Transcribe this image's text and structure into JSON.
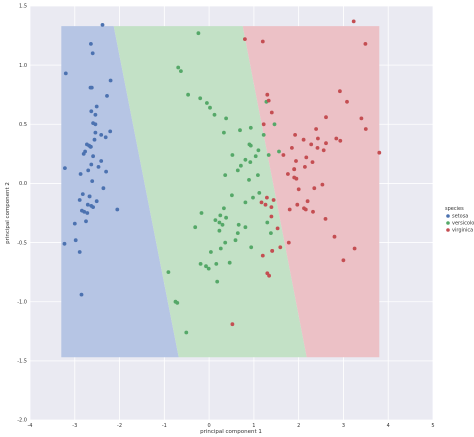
{
  "chart_data": {
    "type": "scatter",
    "title": "",
    "xlabel": "principal component 1",
    "ylabel": "principal component 2",
    "xlim": [
      -4,
      5
    ],
    "ylim": [
      -2.0,
      1.5
    ],
    "xticks": [
      -4,
      -3,
      -2,
      -1,
      0,
      1,
      2,
      3,
      4,
      5
    ],
    "yticks": [
      -2.0,
      -1.5,
      -1.0,
      -0.5,
      0.0,
      0.5,
      1.0,
      1.5
    ],
    "grid": true,
    "legend": {
      "title": "species",
      "placement": "right"
    },
    "decision_regions": {
      "extent": {
        "x": [
          -3.3,
          3.8
        ],
        "y": [
          -1.47,
          1.33
        ]
      },
      "regions": [
        {
          "class": "setosa",
          "color": "#b6c5e4",
          "polygon": [
            [
              -3.3,
              1.33
            ],
            [
              -2.13,
              1.33
            ],
            [
              -0.68,
              -1.47
            ],
            [
              -3.3,
              -1.47
            ]
          ]
        },
        {
          "class": "versicolor",
          "color": "#c3e1c6",
          "polygon": [
            [
              -2.13,
              1.33
            ],
            [
              0.75,
              1.33
            ],
            [
              2.18,
              -1.47
            ],
            [
              -0.68,
              -1.47
            ]
          ]
        },
        {
          "class": "virginica",
          "color": "#ecc1c6",
          "polygon": [
            [
              0.75,
              1.33
            ],
            [
              3.8,
              1.33
            ],
            [
              3.8,
              -1.47
            ],
            [
              2.18,
              -1.47
            ]
          ]
        }
      ]
    },
    "series": [
      {
        "name": "setosa",
        "color": "#4c72b0",
        "points": [
          [
            -2.68,
            0.32
          ],
          [
            -2.71,
            -0.18
          ],
          [
            -2.89,
            -0.14
          ],
          [
            -2.75,
            -0.32
          ],
          [
            -2.73,
            0.33
          ],
          [
            -2.28,
            0.74
          ],
          [
            -2.82,
            -0.09
          ],
          [
            -2.63,
            0.16
          ],
          [
            -2.89,
            -0.58
          ],
          [
            -2.67,
            -0.11
          ],
          [
            -2.51,
            0.65
          ],
          [
            -2.61,
            0.02
          ],
          [
            -2.79,
            -0.24
          ],
          [
            -3.23,
            -0.51
          ],
          [
            -2.64,
            1.18
          ],
          [
            -2.38,
            1.34
          ],
          [
            -2.62,
            0.81
          ],
          [
            -2.65,
            0.31
          ],
          [
            -2.2,
            0.87
          ],
          [
            -2.59,
            0.51
          ],
          [
            -2.31,
            0.39
          ],
          [
            -2.54,
            0.43
          ],
          [
            -3.22,
            0.13
          ],
          [
            -2.3,
            0.1
          ],
          [
            -2.36,
            -0.04
          ],
          [
            -2.51,
            -0.15
          ],
          [
            -2.47,
            0.14
          ],
          [
            -2.56,
            0.37
          ],
          [
            -2.64,
            0.31
          ],
          [
            -2.63,
            -0.19
          ],
          [
            -2.59,
            -0.2
          ],
          [
            -2.41,
            0.41
          ],
          [
            -2.65,
            0.81
          ],
          [
            -2.6,
            1.1
          ],
          [
            -2.67,
            -0.11
          ],
          [
            -2.87,
            0.08
          ],
          [
            -2.63,
            0.61
          ],
          [
            -2.8,
            0.25
          ],
          [
            -2.98,
            -0.48
          ],
          [
            -2.59,
            0.23
          ],
          [
            -2.77,
            0.27
          ],
          [
            -2.85,
            -0.94
          ],
          [
            -3,
            -0.34
          ],
          [
            -2.41,
            0.19
          ],
          [
            -2.21,
            0.44
          ],
          [
            -2.72,
            -0.25
          ],
          [
            -2.54,
            0.5
          ],
          [
            -2.84,
            -0.23
          ],
          [
            -2.54,
            0.58
          ],
          [
            -2.7,
            0.11
          ],
          [
            -3.2,
            0.93
          ],
          [
            -2.05,
            -0.22
          ]
        ]
      },
      {
        "name": "versicolor",
        "color": "#55a868",
        "points": [
          [
            1.28,
            0.69
          ],
          [
            0.93,
            0.32
          ],
          [
            1.46,
            0.5
          ],
          [
            0.18,
            -0.83
          ],
          [
            1.09,
            0.07
          ],
          [
            0.64,
            -0.42
          ],
          [
            1.1,
            0.28
          ],
          [
            -0.75,
            -1
          ],
          [
            1.04,
            0.23
          ],
          [
            -0.01,
            -0.72
          ],
          [
            -0.51,
            -1.26
          ],
          [
            0.51,
            -0.1
          ],
          [
            0.26,
            -0.55
          ],
          [
            0.98,
            -0.12
          ],
          [
            -0.17,
            -0.25
          ],
          [
            0.93,
            0.47
          ],
          [
            0.66,
            -0.35
          ],
          [
            0.23,
            -0.33
          ],
          [
            0.94,
            -0.54
          ],
          [
            0.04,
            -0.58
          ],
          [
            1.12,
            -0.08
          ],
          [
            0.36,
            0.07
          ],
          [
            1.3,
            -0.33
          ],
          [
            0.92,
            0.18
          ],
          [
            0.71,
            0.15
          ],
          [
            0.9,
            0.33
          ],
          [
            1.33,
            0.24
          ],
          [
            1.56,
            0.27
          ],
          [
            0.81,
            -0.16
          ],
          [
            -0.31,
            -0.37
          ],
          [
            -0.07,
            -0.7
          ],
          [
            -0.19,
            -0.68
          ],
          [
            0.14,
            -0.31
          ],
          [
            1.38,
            -0.42
          ],
          [
            0.59,
            -0.48
          ],
          [
            0.81,
            0.2
          ],
          [
            1.22,
            0.41
          ],
          [
            0.81,
            -0.37
          ],
          [
            0.25,
            -0.27
          ],
          [
            0.16,
            -0.68
          ],
          [
            0.46,
            -0.67
          ],
          [
            0.89,
            0.03
          ],
          [
            0.23,
            -0.4
          ],
          [
            -0.71,
            -1.01
          ],
          [
            0.36,
            -0.5
          ],
          [
            0.33,
            -0.21
          ],
          [
            0.38,
            -0.29
          ],
          [
            0.64,
            0.11
          ],
          [
            -0.91,
            -0.75
          ],
          [
            0.3,
            -0.35
          ],
          [
            -0.47,
            0.75
          ],
          [
            -0.24,
            1.27
          ],
          [
            -0.69,
            0.98
          ],
          [
            -0.63,
            0.95
          ],
          [
            -0.2,
            0.72
          ],
          [
            -0.05,
            0.68
          ],
          [
            0.02,
            0.64
          ],
          [
            0.33,
            0.43
          ],
          [
            0.38,
            0.55
          ],
          [
            0.52,
            0.24
          ],
          [
            0.69,
            0.45
          ],
          [
            0.12,
            0.58
          ]
        ]
      },
      {
        "name": "virginica",
        "color": "#c44e52",
        "points": [
          [
            2.53,
            -0.01
          ],
          [
            1.41,
            -0.57
          ],
          [
            2.61,
            0.34
          ],
          [
            1.97,
            -0.18
          ],
          [
            2.35,
            -0.04
          ],
          [
            3.4,
            0.55
          ],
          [
            0.52,
            -1.19
          ],
          [
            2.93,
            0.36
          ],
          [
            2.32,
            -0.24
          ],
          [
            2.92,
            0.78
          ],
          [
            1.66,
            0.24
          ],
          [
            1.8,
            -0.22
          ],
          [
            2.17,
            0.22
          ],
          [
            1.34,
            -0.78
          ],
          [
            1.59,
            -0.54
          ],
          [
            1.9,
            0.12
          ],
          [
            1.95,
            0.04
          ],
          [
            3.49,
            1.18
          ],
          [
            3.8,
            0.26
          ],
          [
            1.3,
            -0.76
          ],
          [
            2.43,
            0.38
          ],
          [
            1.2,
            -0.61
          ],
          [
            3.5,
            0.46
          ],
          [
            1.39,
            -0.2
          ],
          [
            2.28,
            0.33
          ],
          [
            2.61,
            0.56
          ],
          [
            1.26,
            -0.18
          ],
          [
            1.29,
            -0.12
          ],
          [
            2.12,
            -0.21
          ],
          [
            2.39,
            0.46
          ],
          [
            2.84,
            0.38
          ],
          [
            3.23,
            1.37
          ],
          [
            2.16,
            -0.22
          ],
          [
            1.44,
            -0.14
          ],
          [
            1.78,
            -0.5
          ],
          [
            3.08,
            0.69
          ],
          [
            2.14,
            0.14
          ],
          [
            1.9,
            0.05
          ],
          [
            1.17,
            -0.16
          ],
          [
            2.11,
            0.37
          ],
          [
            2.31,
            0.18
          ],
          [
            1.92,
            0.41
          ],
          [
            1.41,
            -0.57
          ],
          [
            2.56,
            0.28
          ],
          [
            2.42,
            0.3
          ],
          [
            1.94,
            0.19
          ],
          [
            1.53,
            -0.38
          ],
          [
            1.76,
            0.08
          ],
          [
            1.9,
            0.12
          ],
          [
            1.39,
            -0.28
          ],
          [
            1.2,
            1.2
          ],
          [
            1.3,
            0.75
          ],
          [
            1.33,
            0.7
          ],
          [
            1.4,
            0.6
          ],
          [
            1.22,
            0.5
          ],
          [
            2.8,
            -0.45
          ],
          [
            2.6,
            -0.3
          ],
          [
            3.0,
            -0.65
          ],
          [
            1.85,
            0.3
          ],
          [
            2.0,
            -0.05
          ],
          [
            2.2,
            -0.15
          ],
          [
            3.25,
            -0.55
          ],
          [
            0.8,
            1.22
          ]
        ]
      }
    ]
  }
}
